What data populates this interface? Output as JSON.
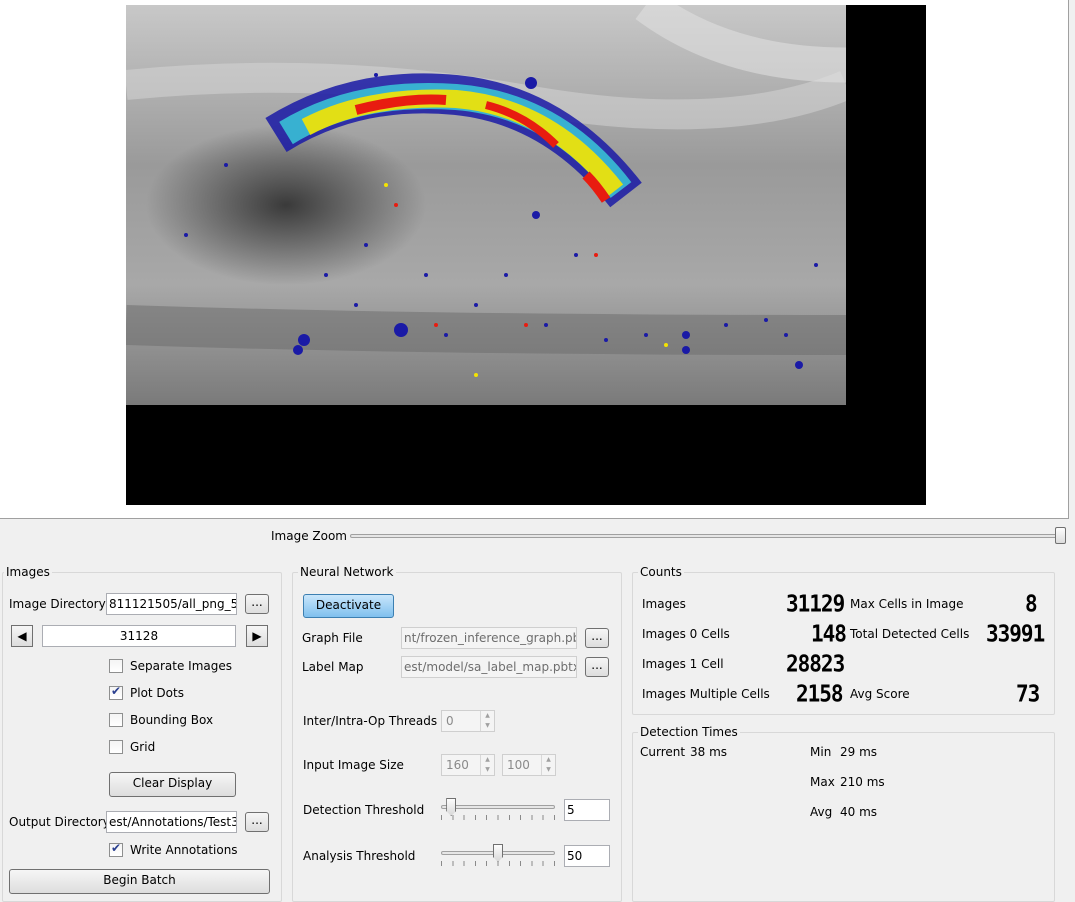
{
  "viewer": {
    "zoom_label": "Image Zoom",
    "zoom_fraction": 1.0
  },
  "images_panel": {
    "title": "Images",
    "image_directory_label": "Image Directory",
    "image_directory_value": "811121505/all_png_5",
    "browse_label": "...",
    "prev_icon": "left-triangle-icon",
    "next_icon": "right-triangle-icon",
    "index_value": "31128",
    "separate_images_label": "Separate Images",
    "separate_images_checked": false,
    "plot_dots_label": "Plot Dots",
    "plot_dots_checked": true,
    "bounding_box_label": "Bounding Box",
    "bounding_box_checked": false,
    "grid_label": "Grid",
    "grid_checked": false,
    "clear_display_label": "Clear Display",
    "output_directory_label": "Output Directory",
    "output_directory_value": "est/Annotations/Test3",
    "write_annotations_label": "Write Annotations",
    "write_annotations_checked": true,
    "begin_batch_label": "Begin Batch"
  },
  "neural_network": {
    "title": "Neural Network",
    "deactivate_label": "Deactivate",
    "graph_file_label": "Graph File",
    "graph_file_value": "nt/frozen_inference_graph.pb",
    "label_map_label": "Label Map",
    "label_map_value": "est/model/sa_label_map.pbtxt",
    "browse_label": "...",
    "threads_label": "Inter/Intra-Op Threads",
    "threads_value": "0",
    "input_size_label": "Input Image Size",
    "input_width": "160",
    "input_height": "100",
    "detection_threshold_label": "Detection Threshold",
    "detection_threshold_value": "5",
    "detection_threshold_level": 5,
    "analysis_threshold_label": "Analysis Threshold",
    "analysis_threshold_value": "50",
    "analysis_threshold_level": 50
  },
  "counts": {
    "title": "Counts",
    "images_label": "Images",
    "images_value": "31129",
    "zero_cells_label": "Images 0 Cells",
    "zero_cells_value": "148",
    "one_cell_label": "Images 1 Cell",
    "one_cell_value": "28823",
    "multiple_cells_label": "Images Multiple Cells",
    "multiple_cells_value": "2158",
    "max_cells_label": "Max Cells in Image",
    "max_cells_value": "8",
    "total_detected_label": "Total Detected Cells",
    "total_detected_value": "33991",
    "avg_score_label": "Avg Score",
    "avg_score_value": "73"
  },
  "detection_times": {
    "title": "Detection Times",
    "current_label": "Current",
    "current_value": "38 ms",
    "min_label": "Min",
    "min_value": "29 ms",
    "max_label": "Max",
    "max_value": "210 ms",
    "avg_label": "Avg",
    "avg_value": "40 ms"
  },
  "colors": {
    "heat_low": "#1a1aa6",
    "heat_mid": "#f5e400",
    "heat_high": "#e81c10",
    "accent_button": "#3d8ed6"
  }
}
